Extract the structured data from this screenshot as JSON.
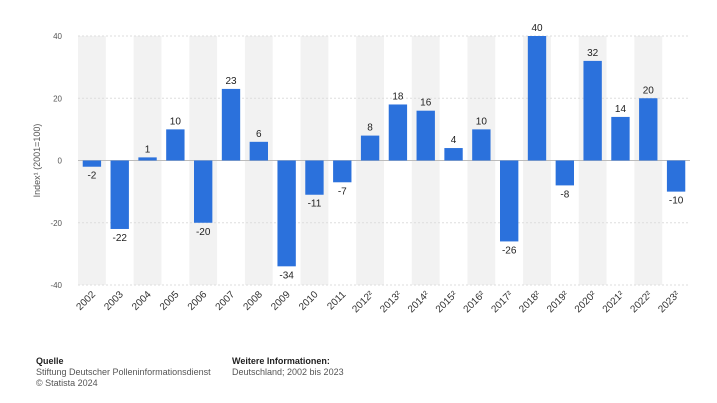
{
  "chart_data": {
    "type": "bar",
    "ylabel": "Index¹ (2001=100)",
    "ylim": [
      -40,
      40
    ],
    "yticks": [
      40,
      20,
      0,
      -20,
      -40
    ],
    "categories": [
      "2002",
      "2003",
      "2004",
      "2005",
      "2006",
      "2007",
      "2008",
      "2009",
      "2010",
      "2011",
      "2012²",
      "2013²",
      "2014²",
      "2015²",
      "2016²",
      "2017²",
      "2018²",
      "2019²",
      "2020²",
      "2021²",
      "2022²",
      "2023²"
    ],
    "values": [
      -2,
      -22,
      1,
      10,
      -20,
      23,
      6,
      -34,
      -11,
      -7,
      8,
      18,
      16,
      4,
      10,
      -26,
      40,
      -8,
      32,
      14,
      20,
      -10
    ],
    "bar_color": "#2b71dc"
  },
  "footer": {
    "source_heading": "Quelle",
    "source_line1": "Stiftung Deutscher Polleninformationsdienst",
    "source_line2": "© Statista 2024",
    "info_heading": "Weitere Informationen:",
    "info_line1": "Deutschland; 2002 bis 2023"
  }
}
